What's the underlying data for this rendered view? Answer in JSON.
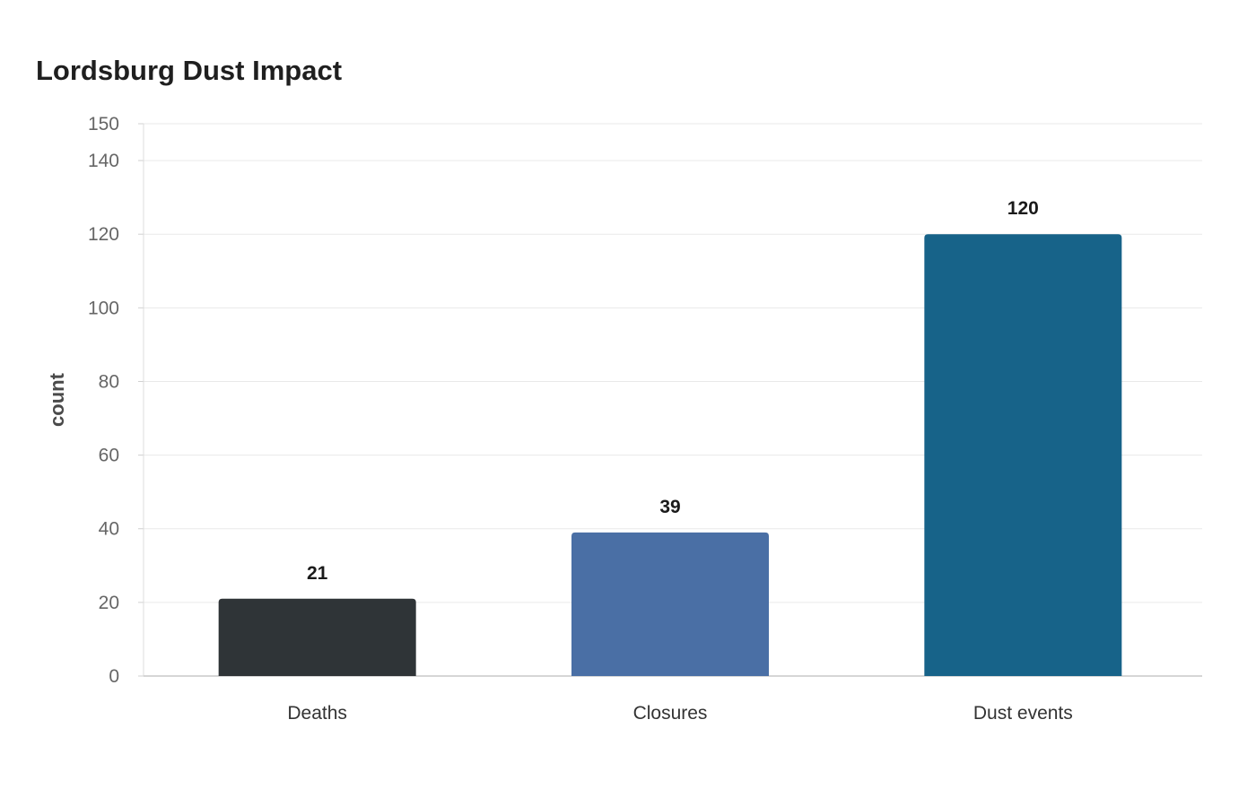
{
  "chart_data": {
    "type": "bar",
    "title": "Lordsburg Dust Impact",
    "xlabel": "",
    "ylabel": "count",
    "categories": [
      "Deaths",
      "Closures",
      "Dust events"
    ],
    "values": [
      21,
      39,
      120
    ],
    "colors": [
      "#2f3437",
      "#4a6fa5",
      "#176389"
    ],
    "ylim": [
      0,
      150
    ],
    "yticks": [
      0,
      20,
      40,
      60,
      80,
      100,
      120,
      140,
      150
    ],
    "grid": true,
    "legend": "none"
  }
}
